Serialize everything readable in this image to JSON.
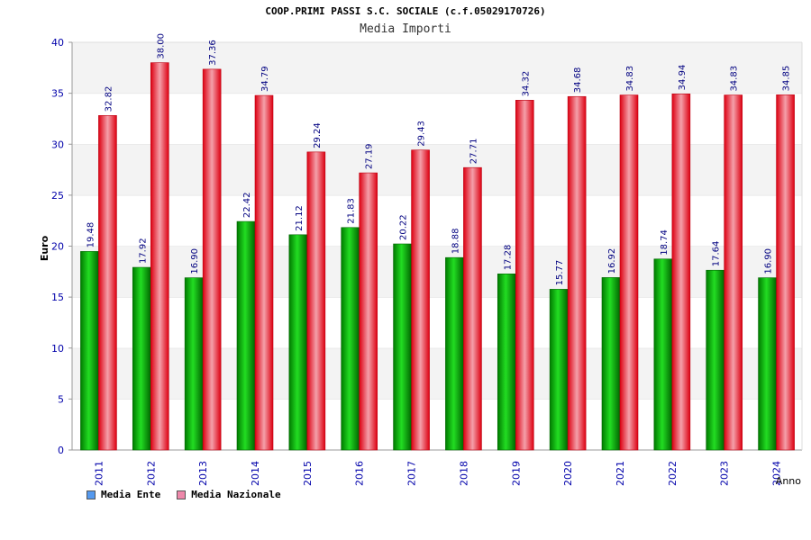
{
  "chart_data": {
    "type": "bar",
    "title": "COOP.PRIMI PASSI S.C. SOCIALE (c.f.05029170726)",
    "subtitle": "Media Importi",
    "xlabel": "Anno",
    "ylabel": "Euro",
    "ylim": [
      0,
      40
    ],
    "yticks": [
      "0",
      "5",
      "10",
      "15",
      "20",
      "25",
      "30",
      "35",
      "40"
    ],
    "categories": [
      "2011",
      "2012",
      "2013",
      "2014",
      "2015",
      "2016",
      "2017",
      "2018",
      "2019",
      "2020",
      "2021",
      "2022",
      "2023",
      "2024"
    ],
    "series": [
      {
        "name": "Media Ente",
        "color": "#00b000",
        "values": [
          19.48,
          17.92,
          16.9,
          22.42,
          21.12,
          21.83,
          20.22,
          18.88,
          17.28,
          15.77,
          16.92,
          18.74,
          17.64,
          16.9
        ],
        "labels": [
          "19.48",
          "17.92",
          "16.90",
          "22.42",
          "21.12",
          "21.83",
          "20.22",
          "18.88",
          "17.28",
          "15.77",
          "16.92",
          "18.74",
          "17.64",
          "16.90"
        ]
      },
      {
        "name": "Media Nazionale",
        "color": "#ee1122",
        "values": [
          32.82,
          38.0,
          37.36,
          34.79,
          29.24,
          27.19,
          29.43,
          27.71,
          34.32,
          34.68,
          34.83,
          34.94,
          34.83,
          34.85
        ],
        "labels": [
          "32.82",
          "38.00",
          "37.36",
          "34.79",
          "29.24",
          "27.19",
          "29.43",
          "27.71",
          "34.32",
          "34.68",
          "34.83",
          "34.94",
          "34.83",
          "34.85"
        ]
      }
    ],
    "legend": [
      {
        "label": "Media Ente",
        "color": "#5599ee"
      },
      {
        "label": "Media Nazionale",
        "color": "#ee88aa"
      }
    ],
    "grid": true
  }
}
